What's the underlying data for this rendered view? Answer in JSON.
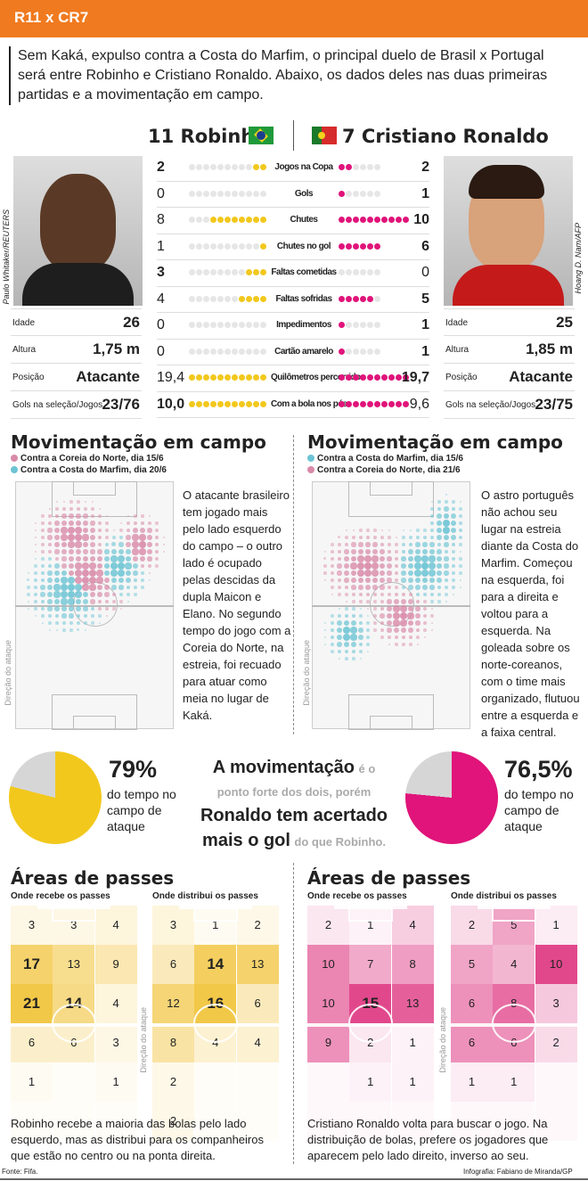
{
  "header": {
    "title": "R11 x CR7"
  },
  "lead": "Sem Kaká, expulso contra a Costa do Marfim, o principal duelo de Brasil x Portugal será entre Robinho e Cristiano Ronaldo. Abaixo, os dados deles nas duas primeiras partidas e a movimentação em campo.",
  "players": {
    "left": "11 Robinho",
    "right": "7 Cristiano Ronaldo"
  },
  "credits": {
    "left": "Paulo Whitaker/REUTERS",
    "right": "Hoang D. Nam/AFP"
  },
  "stats": [
    {
      "label": "Jogos na Copa",
      "l": "2",
      "r": "2",
      "lb": false,
      "rb": false,
      "ld": 2,
      "rd": 2,
      "ln": 11,
      "rn": 6
    },
    {
      "label": "Gols",
      "l": "0",
      "r": "1",
      "ld": 0,
      "rd": 1,
      "ln": 11,
      "rn": 6
    },
    {
      "label": "Chutes",
      "l": "8",
      "r": "10",
      "ld": 8,
      "rd": 10,
      "ln": 11,
      "rn": 10
    },
    {
      "label": "Chutes no gol",
      "l": "1",
      "r": "6",
      "ld": 1,
      "rd": 6,
      "ln": 11,
      "rn": 6
    },
    {
      "label": "Faltas cometidas",
      "l": "3",
      "r": "0",
      "ld": 3,
      "rd": 0,
      "ln": 11,
      "rn": 6
    },
    {
      "label": "Faltas sofridas",
      "l": "4",
      "r": "5",
      "ld": 4,
      "rd": 5,
      "ln": 11,
      "rn": 6
    },
    {
      "label": "Impedimentos",
      "l": "0",
      "r": "1",
      "ld": 0,
      "rd": 1,
      "ln": 11,
      "rn": 6
    },
    {
      "label": "Cartão amarelo",
      "l": "0",
      "r": "1",
      "ld": 0,
      "rd": 1,
      "ln": 11,
      "rn": 6
    },
    {
      "label": "Quilômetros percorridos",
      "l": "19,4",
      "r": "19,7",
      "ld": 11,
      "rd": 10,
      "ln": 11,
      "rn": 10
    },
    {
      "label": "Com a bola nos pés",
      "l": "10,0",
      "r": "9,6",
      "ld": 11,
      "rd": 10,
      "ln": 11,
      "rn": 10
    }
  ],
  "bio_left": [
    {
      "k": "Idade",
      "v": "26"
    },
    {
      "k": "Altura",
      "v": "1,75 m"
    },
    {
      "k": "Posição",
      "v": "Atacante"
    },
    {
      "k": "Gols na seleção/Jogos",
      "v": "23/76"
    }
  ],
  "bio_right": [
    {
      "k": "Idade",
      "v": "25"
    },
    {
      "k": "Altura",
      "v": "1,85 m"
    },
    {
      "k": "Posição",
      "v": "Atacante"
    },
    {
      "k": "Gols na seleção/Jogos",
      "v": "23/75"
    }
  ],
  "mov_left": {
    "title": "Movimentação em campo",
    "leg1": "Contra a Coreia do Norte, dia 15/6",
    "leg2": "Contra a Costa do Marfim, dia 20/6",
    "text": "O atacante brasileiro tem jogado mais pelo lado esquerdo do campo – o outro lado é ocupado pelas descidas da dupla Maicon e Elano. No segundo tempo do jogo com a Coreia do Norte, na estreia, foi recuado para atuar como meia no lugar de Kaká."
  },
  "mov_right": {
    "title": "Movimentação em campo",
    "leg1": "Contra a Costa do Marfim, dia 15/6",
    "leg2": "Contra a Coreia do Norte, dia 21/6",
    "text": "O astro português não achou seu lugar na estreia diante da Costa do Marfim. Começou na esquerda, foi para a direita e voltou para a esquerda. Na goleada sobre os norte-coreanos, com o time mais organizado, flutuou entre a esquerda e a faixa central."
  },
  "direction": "Direção do ataque",
  "pies": {
    "left": {
      "pct": "79%",
      "text": "do tempo no campo de ataque",
      "value": 0.79
    },
    "right": {
      "pct": "76,5%",
      "text": "do tempo no campo de ataque",
      "value": 0.765
    }
  },
  "center": {
    "a": "A movimentação",
    "b": "é o",
    "c": "ponto forte dos dois, porém",
    "d": "Ronaldo tem acertado",
    "e": "mais o gol",
    "f": "do que Robinho."
  },
  "passes": {
    "title": "Áreas de passes",
    "receive": "Onde recebe os passes",
    "distribute": "Onde distribui os passes",
    "robinho_receive": [
      [
        "3",
        "3",
        "4"
      ],
      [
        "17",
        "13",
        "9"
      ],
      [
        "21",
        "14",
        "4"
      ],
      [
        "6",
        "6",
        "3"
      ],
      [
        "1",
        "",
        "1"
      ],
      [
        "",
        "",
        ""
      ]
    ],
    "robinho_distribute": [
      [
        "3",
        "1",
        "2"
      ],
      [
        "6",
        "14",
        "13"
      ],
      [
        "12",
        "16",
        "6"
      ],
      [
        "8",
        "4",
        "4"
      ],
      [
        "2",
        "",
        ""
      ],
      [
        "2",
        "",
        ""
      ]
    ],
    "ronaldo_receive": [
      [
        "2",
        "1",
        "4"
      ],
      [
        "10",
        "7",
        "8"
      ],
      [
        "10",
        "15",
        "13"
      ],
      [
        "9",
        "2",
        "1"
      ],
      [
        "",
        "1",
        "1"
      ],
      [
        "",
        "",
        ""
      ]
    ],
    "ronaldo_distribute": [
      [
        "2",
        "5",
        "1"
      ],
      [
        "5",
        "4",
        "10"
      ],
      [
        "6",
        "8",
        "3"
      ],
      [
        "6",
        "6",
        "2"
      ],
      [
        "1",
        "1",
        ""
      ],
      [
        "",
        "",
        ""
      ]
    ],
    "foot_left": "Robinho recebe a maioria das bolas pelo lado esquerdo, mas as distribui para os companheiros que estão no centro ou na ponta direita.",
    "foot_right": "Cristiano Ronaldo volta para buscar o jogo. Na distribuição de bolas, prefere os jogadores que aparecem pelo lado direito, inverso ao seu."
  },
  "source": "Fonte: Fifa.",
  "infografia": "Infografia: Fabiano de Miranda/GP",
  "colors": {
    "orange": "#f07a1f",
    "yellow": "#f2c81c",
    "magenta": "#e0147a",
    "pink": "#d98aa8",
    "cyan": "#6cc4d4"
  }
}
